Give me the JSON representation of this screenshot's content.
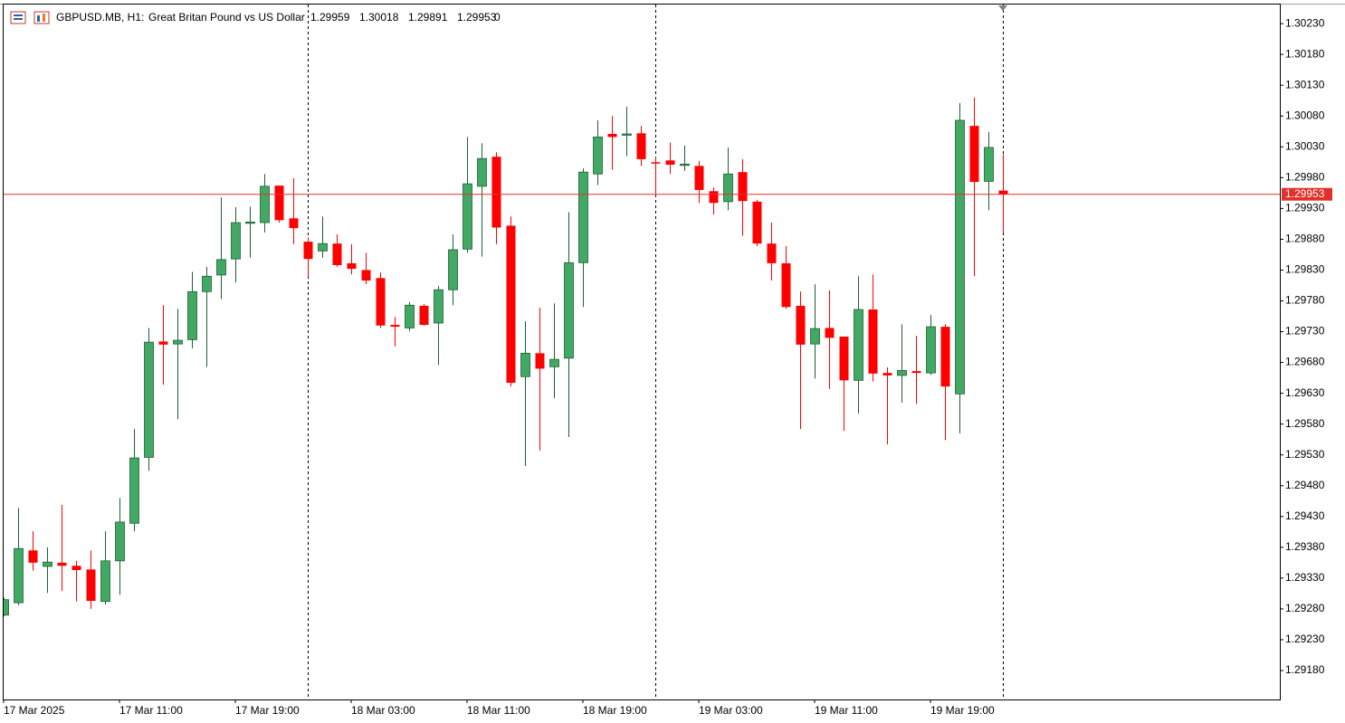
{
  "chart_data": {
    "type": "candlestick",
    "symbol": "GBPUSD.MB, H1:",
    "description": "Great Britan Pound vs US Dollar",
    "volume": 0,
    "up_color": "#42a964",
    "up_edge": "#1f5e35",
    "down_color": "#ff0000",
    "price_line_color": "#e0302b",
    "categories": [
      "17 Mar 2025",
      null,
      null,
      null,
      null,
      null,
      null,
      null,
      "17 Mar 11:00",
      null,
      null,
      null,
      null,
      null,
      null,
      null,
      "17 Mar 19:00",
      null,
      null,
      null,
      null,
      null,
      null,
      null,
      "18 Mar 03:00",
      null,
      null,
      null,
      null,
      null,
      null,
      null,
      "18 Mar 11:00",
      null,
      null,
      null,
      null,
      null,
      null,
      null,
      "18 Mar 19:00",
      null,
      null,
      null,
      null,
      null,
      null,
      null,
      "19 Mar 03:00",
      null,
      null,
      null,
      null,
      null,
      null,
      null,
      "19 Mar 11:00",
      null,
      null,
      null,
      null,
      null,
      null,
      null,
      "19 Mar 19:00",
      null,
      null,
      null,
      null,
      null
    ],
    "open": [
      1.2927,
      1.2929,
      1.29375,
      1.29349,
      1.29355,
      1.2935,
      1.29344,
      1.29292,
      1.29358,
      1.29419,
      1.29526,
      1.29714,
      1.2971,
      1.29717,
      1.29795,
      1.29822,
      1.29848,
      1.29907,
      1.29907,
      1.29967,
      1.29914,
      1.29876,
      1.29861,
      1.29873,
      1.29841,
      1.2983,
      1.29817,
      1.29741,
      1.29736,
      1.29772,
      1.29744,
      1.29798,
      1.29864,
      1.29966,
      1.30014,
      1.29902,
      1.29657,
      1.29695,
      1.29673,
      1.29687,
      1.29842,
      1.29986,
      1.30051,
      1.30049,
      1.30052,
      1.30005,
      1.30008,
      1.30001,
      1.29999,
      1.29958,
      1.29941,
      1.29989,
      1.29941,
      1.29873,
      1.29841,
      1.29772,
      1.2971,
      1.29736,
      1.29722,
      1.29651,
      1.29766,
      1.29663,
      1.29659,
      1.29666,
      1.29663,
      1.29738,
      1.29629,
      1.30064,
      1.29974,
      1.29959
    ],
    "high": [
      1.29298,
      1.29444,
      1.29406,
      1.2938,
      1.29449,
      1.29358,
      1.29375,
      1.29406,
      1.2946,
      1.29572,
      1.29736,
      1.29773,
      1.29767,
      1.29827,
      1.29835,
      1.29948,
      1.29932,
      1.29933,
      1.29986,
      1.29967,
      1.29979,
      1.29883,
      1.29917,
      1.29888,
      1.29872,
      1.29858,
      1.29826,
      1.29754,
      1.29778,
      1.29775,
      1.29804,
      1.29888,
      1.30046,
      1.30036,
      1.30021,
      1.29917,
      1.29747,
      1.29769,
      1.29776,
      1.29924,
      1.29995,
      1.30073,
      1.3008,
      1.30095,
      1.30064,
      1.30013,
      1.30037,
      1.30032,
      1.30007,
      1.29964,
      1.30029,
      1.3001,
      1.29944,
      1.29907,
      1.29869,
      1.29795,
      1.29807,
      1.29797,
      1.29722,
      1.2982,
      1.29823,
      1.29672,
      1.29742,
      1.29723,
      1.29757,
      1.29742,
      1.30101,
      1.3011,
      1.30054,
      1.30018
    ],
    "low": [
      1.29268,
      1.29286,
      1.29342,
      1.29306,
      1.29309,
      1.29292,
      1.2928,
      1.29287,
      1.29303,
      1.29406,
      1.29504,
      1.29644,
      1.29588,
      1.29703,
      1.29673,
      1.29783,
      1.2981,
      1.2985,
      1.29891,
      1.29907,
      1.29872,
      1.29819,
      1.2985,
      1.29835,
      1.29823,
      1.29807,
      1.29736,
      1.29706,
      1.29731,
      1.2974,
      1.29676,
      1.29773,
      1.29858,
      1.29852,
      1.29872,
      1.29641,
      1.29512,
      1.29537,
      1.29622,
      1.29559,
      1.2977,
      1.29968,
      1.29993,
      1.30015,
      1.29999,
      1.29951,
      1.29986,
      1.29991,
      1.29939,
      1.2992,
      1.29927,
      1.29886,
      1.29869,
      1.29813,
      1.29767,
      1.29572,
      1.29654,
      1.29637,
      1.29569,
      1.29597,
      1.29649,
      1.29547,
      1.29615,
      1.29613,
      1.2966,
      1.29554,
      1.29565,
      1.2982,
      1.29927,
      1.29891
    ],
    "close": [
      1.29295,
      1.29378,
      1.29355,
      1.29356,
      1.2935,
      1.29343,
      1.29293,
      1.29358,
      1.29421,
      1.29525,
      1.29713,
      1.29709,
      1.29716,
      1.29795,
      1.2982,
      1.29847,
      1.29907,
      1.29908,
      1.29966,
      1.29911,
      1.29898,
      1.29848,
      1.29873,
      1.29838,
      1.29832,
      1.29813,
      1.2974,
      1.29738,
      1.29773,
      1.29741,
      1.29798,
      1.29863,
      1.2997,
      1.30011,
      1.29899,
      1.29647,
      1.29695,
      1.2967,
      1.29685,
      1.29842,
      1.29989,
      1.30046,
      1.30046,
      1.30051,
      1.3001,
      1.30004,
      1.30001,
      1.30002,
      1.2996,
      1.29939,
      1.29986,
      1.29942,
      1.29873,
      1.29841,
      1.2977,
      1.29709,
      1.29735,
      1.2972,
      1.29651,
      1.29766,
      1.29662,
      1.29659,
      1.29667,
      1.29663,
      1.29738,
      1.29641,
      1.30073,
      1.29973,
      1.30029,
      1.29953
    ],
    "ylim": [
      1.29133,
      1.30261
    ],
    "yticks": [
      {
        "value": 1.3023,
        "label": "1.30230"
      },
      {
        "value": 1.3018,
        "label": "1.30180"
      },
      {
        "value": 1.3013,
        "label": "1.30130"
      },
      {
        "value": 1.3008,
        "label": "1.30080"
      },
      {
        "value": 1.3003,
        "label": "1.30030"
      },
      {
        "value": 1.2998,
        "label": "1.29980"
      },
      {
        "value": 1.2993,
        "label": "1.29930"
      },
      {
        "value": 1.2988,
        "label": "1.29880"
      },
      {
        "value": 1.2983,
        "label": "1.29830"
      },
      {
        "value": 1.2978,
        "label": "1.29780"
      },
      {
        "value": 1.2973,
        "label": "1.29730"
      },
      {
        "value": 1.2968,
        "label": "1.29680"
      },
      {
        "value": 1.2963,
        "label": "1.29630"
      },
      {
        "value": 1.2958,
        "label": "1.29580"
      },
      {
        "value": 1.2953,
        "label": "1.29530"
      },
      {
        "value": 1.2948,
        "label": "1.29480"
      },
      {
        "value": 1.2943,
        "label": "1.29430"
      },
      {
        "value": 1.2938,
        "label": "1.29380"
      },
      {
        "value": 1.2933,
        "label": "1.29330"
      },
      {
        "value": 1.2928,
        "label": "1.29280"
      },
      {
        "value": 1.2923,
        "label": "1.29230"
      },
      {
        "value": 1.2918,
        "label": "1.29180"
      }
    ],
    "grid": false
  }
}
